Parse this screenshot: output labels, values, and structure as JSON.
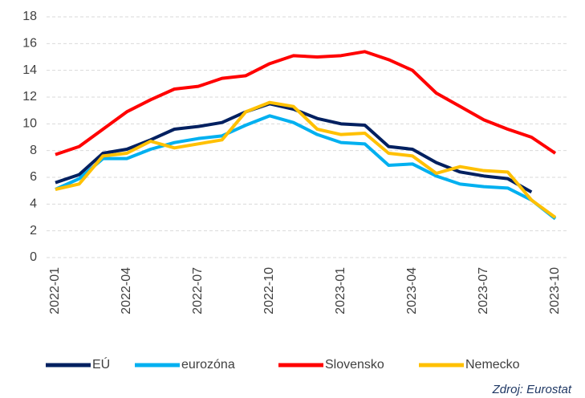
{
  "chart_data": {
    "type": "line",
    "categories": [
      "2022-01",
      null,
      null,
      "2022-04",
      null,
      null,
      "2022-07",
      null,
      null,
      "2022-10",
      null,
      null,
      "2023-01",
      null,
      null,
      "2023-04",
      null,
      null,
      "2023-07",
      null,
      null,
      "2023-10"
    ],
    "series": [
      {
        "name": "EÚ",
        "color": "#002060",
        "values": [
          5.6,
          6.2,
          7.8,
          8.1,
          8.8,
          9.6,
          9.8,
          10.1,
          10.9,
          11.5,
          11.1,
          10.4,
          10.0,
          9.9,
          8.3,
          8.1,
          7.1,
          6.4,
          6.1,
          5.9,
          4.9,
          null
        ]
      },
      {
        "name": "eurozóna",
        "color": "#00b0f0",
        "values": [
          5.1,
          5.9,
          7.4,
          7.4,
          8.1,
          8.6,
          8.9,
          9.1,
          9.9,
          10.6,
          10.1,
          9.2,
          8.6,
          8.5,
          6.9,
          7.0,
          6.1,
          5.5,
          5.3,
          5.2,
          4.3,
          2.9
        ]
      },
      {
        "name": "Slovensko",
        "color": "#ff0000",
        "values": [
          7.7,
          8.3,
          9.6,
          10.9,
          11.8,
          12.6,
          12.8,
          13.4,
          13.6,
          14.5,
          15.1,
          15.0,
          15.1,
          15.4,
          14.8,
          14.0,
          12.3,
          11.3,
          10.3,
          9.6,
          9.0,
          7.8
        ]
      },
      {
        "name": "Nemecko",
        "color": "#ffc000",
        "values": [
          5.1,
          5.5,
          7.6,
          7.8,
          8.7,
          8.2,
          8.5,
          8.8,
          10.9,
          11.6,
          11.3,
          9.6,
          9.2,
          9.3,
          7.8,
          7.6,
          6.3,
          6.8,
          6.5,
          6.4,
          4.3,
          3.0
        ]
      }
    ],
    "ylim": [
      0,
      18
    ],
    "yticks": [
      0,
      2,
      4,
      6,
      8,
      10,
      12,
      14,
      16,
      18
    ],
    "grid": true,
    "legend": "bottom",
    "source": "Zdroj: Eurostat"
  }
}
